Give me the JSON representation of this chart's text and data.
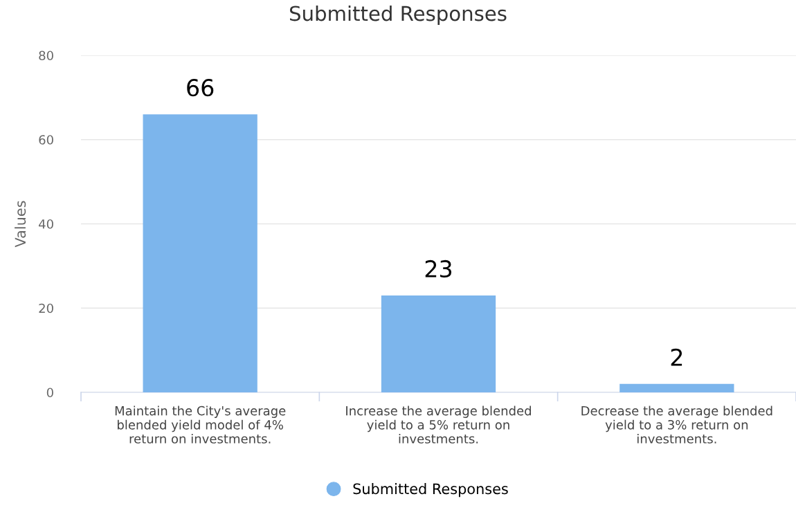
{
  "chart_data": {
    "type": "bar",
    "title": "Submitted Responses",
    "ylabel": "Values",
    "categories": [
      "Maintain the City's average\nblended yield model of 4%\nreturn on investments.",
      "Increase the average blended\nyield to a 5% return on\ninvestments.",
      "Decrease the average blended\nyield to a 3% return on\ninvestments."
    ],
    "series": [
      {
        "name": "Submitted Responses",
        "color": "#7cb5ec",
        "values": [
          66,
          23,
          2
        ]
      }
    ],
    "ylim": [
      0,
      80
    ],
    "yticks": [
      0,
      20,
      40,
      60,
      80
    ],
    "grid": "y",
    "legend": "bottom",
    "data_labels": true
  }
}
